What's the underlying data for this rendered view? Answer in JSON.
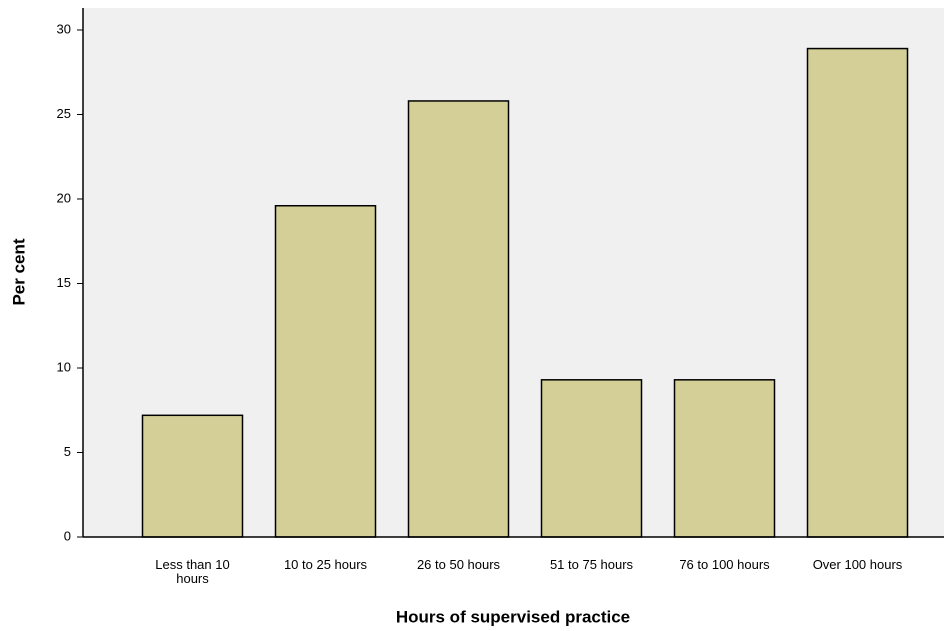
{
  "chart_data": {
    "type": "bar",
    "x_label": "Hours of supervised practice",
    "y_label": "Per cent",
    "categories": [
      "Less than 10 hours",
      "10 to 25 hours",
      "26 to 50 hours",
      "51 to 75 hours",
      "76 to 100 hours",
      "Over 100 hours"
    ],
    "values": [
      7.2,
      19.6,
      25.8,
      9.3,
      9.3,
      28.9
    ],
    "color": "#d3cf97",
    "ylim": [
      0,
      31.3
    ],
    "yticks": [
      0,
      5,
      10,
      15,
      20,
      25,
      30
    ],
    "grid": false
  }
}
